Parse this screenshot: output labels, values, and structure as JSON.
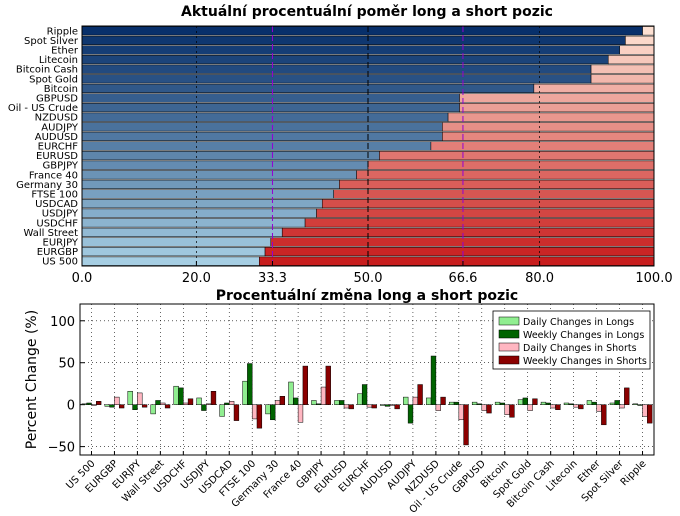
{
  "chart_data": [
    {
      "type": "bar",
      "orientation": "horizontal",
      "stacked": true,
      "title": "Aktuální procentuální poměr long a short pozic",
      "categories": [
        "Ripple",
        "Spot Silver",
        "Ether",
        "Litecoin",
        "Bitcoin Cash",
        "Spot Gold",
        "Bitcoin",
        "GBPUSD",
        "Oil - US Crude",
        "NZDUSD",
        "AUDJPY",
        "AUDUSD",
        "EURCHF",
        "EURUSD",
        "GBPJPY",
        "France 40",
        "Germany 30",
        "FTSE 100",
        "USDCAD",
        "USDJPY",
        "USDCHF",
        "Wall Street",
        "EURJPY",
        "EURGBP",
        "US 500"
      ],
      "long_values": [
        98,
        95,
        94,
        92,
        89,
        89,
        79,
        66,
        66,
        64,
        63,
        63,
        61,
        52,
        50,
        48,
        45,
        44,
        42,
        41,
        39,
        35,
        33,
        32,
        31
      ],
      "xlim": [
        0,
        100
      ],
      "xticks": [
        "0.0",
        "20.0",
        "33.3",
        "50.0",
        "66.6",
        "80.0",
        "100.0"
      ],
      "grid": true,
      "reference_lines": [
        {
          "value": 33.3,
          "color": "#9400d3"
        },
        {
          "value": 50.0,
          "color": "#000000"
        },
        {
          "value": 66.6,
          "color": "#9400d3"
        }
      ]
    },
    {
      "type": "bar",
      "title": "Procentuální změna long a short pozic",
      "ylabel": "Percent Change (%)",
      "ylim": [
        -60,
        120
      ],
      "yticks": [
        "100",
        "50",
        "0",
        "−50"
      ],
      "grid": true,
      "legend_position": "top-right",
      "categories": [
        "US 500",
        "EURGBP",
        "EURJPY",
        "Wall Street",
        "USDCHF",
        "USDJPY",
        "USDCAD",
        "FTSE 100",
        "Germany 30",
        "France 40",
        "GBPJPY",
        "EURUSD",
        "EURCHF",
        "AUDUSD",
        "AUDJPY",
        "NZDUSD",
        "Oil - US Crude",
        "GBPUSD",
        "Bitcoin",
        "Spot Gold",
        "Bitcoin Cash",
        "Litecoin",
        "Ether",
        "Spot Silver",
        "Ripple"
      ],
      "series": [
        {
          "name": "Daily Changes in Longs",
          "color": "#90ee90",
          "values": [
            1,
            -2,
            16,
            -11,
            22,
            8,
            -14,
            28,
            -11,
            27,
            5,
            5,
            13,
            -1,
            9,
            8,
            3,
            3,
            3,
            6,
            3,
            2,
            5,
            2,
            1
          ]
        },
        {
          "name": "Weekly Changes in Longs",
          "color": "#006400",
          "values": [
            2,
            -3,
            -6,
            5,
            20,
            -7,
            2,
            49,
            -18,
            8,
            1,
            5,
            24,
            -2,
            -22,
            58,
            3,
            1,
            2,
            8,
            2,
            1,
            3,
            5,
            0
          ]
        },
        {
          "name": "Daily Changes in Shorts",
          "color": "#ffb6c1",
          "values": [
            -1,
            9,
            14,
            2,
            2,
            1,
            4,
            -17,
            5,
            -21,
            21,
            -4,
            -3,
            -1,
            9,
            -7,
            -18,
            -7,
            -12,
            -7,
            -4,
            -3,
            -8,
            -4,
            -14
          ]
        },
        {
          "name": "Weekly Changes in Shorts",
          "color": "#8b0000",
          "values": [
            4,
            -4,
            -3,
            -4,
            7,
            16,
            -19,
            -28,
            10,
            46,
            46,
            -5,
            -4,
            -5,
            24,
            9,
            -48,
            -10,
            -15,
            7,
            -6,
            -5,
            -24,
            20,
            -22
          ]
        }
      ]
    }
  ]
}
